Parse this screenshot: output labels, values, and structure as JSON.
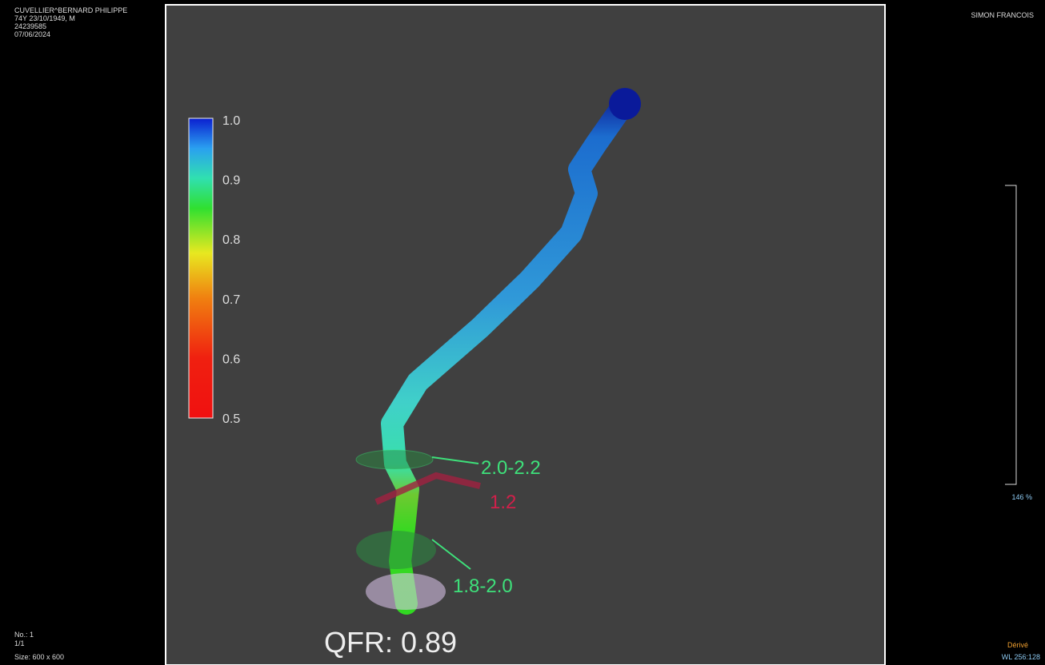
{
  "header": {
    "patient_lines": [
      "CUVELLIER^BERNARD PHILIPPE",
      "74Y 23/10/1949, M",
      "24239585",
      "07/06/2024"
    ],
    "operator": "SIMON FRANCOIS"
  },
  "colorbar": {
    "ticks": [
      "1.0",
      "0.9",
      "0.8",
      "0.7",
      "0.6",
      "0.5"
    ]
  },
  "annotations": {
    "proximal": "2.0-2.2",
    "lesion": "1.2",
    "distal": "1.8-2.0"
  },
  "result": "QFR: 0.89",
  "footer": {
    "left_lines": [
      "No.: 1",
      "1/1",
      "Size: 600 x 600"
    ],
    "zoom": "146 %",
    "mode": "Dérivé",
    "window": "WL 256:128"
  }
}
